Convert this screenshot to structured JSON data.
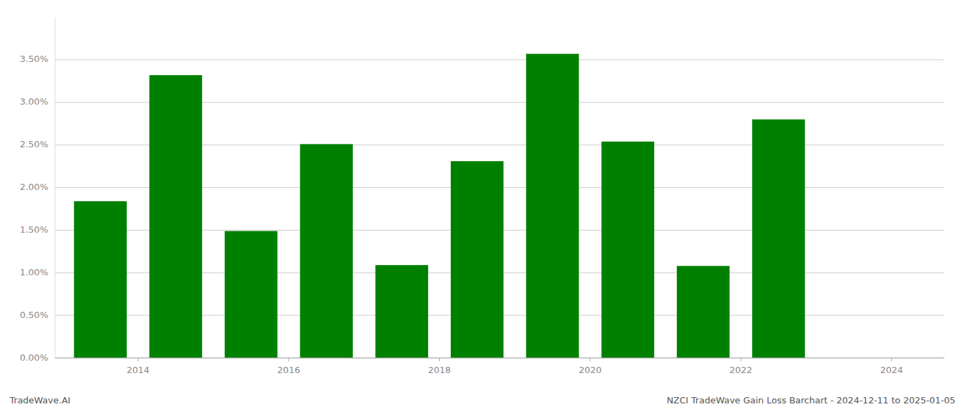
{
  "chart_data": {
    "type": "bar",
    "x": [
      2014,
      2015,
      2016,
      2017,
      2018,
      2019,
      2020,
      2021,
      2022,
      2023
    ],
    "values": [
      0.0184,
      0.0332,
      0.0149,
      0.0251,
      0.0109,
      0.0231,
      0.0357,
      0.0254,
      0.0108,
      0.028
    ],
    "color": "#008000",
    "xlim": [
      2013.4,
      2025.2
    ],
    "xticks": [
      {
        "value": 2014.5,
        "label": "2014"
      },
      {
        "value": 2016.5,
        "label": "2016"
      },
      {
        "value": 2018.5,
        "label": "2018"
      },
      {
        "value": 2020.5,
        "label": "2020"
      },
      {
        "value": 2022.5,
        "label": "2022"
      },
      {
        "value": 2024.5,
        "label": "2024"
      }
    ],
    "ylim": [
      0,
      0.04
    ],
    "yticks": [
      {
        "value": 0.0,
        "label": "0.00%"
      },
      {
        "value": 0.005,
        "label": "0.50%"
      },
      {
        "value": 0.01,
        "label": "1.00%"
      },
      {
        "value": 0.015,
        "label": "1.50%"
      },
      {
        "value": 0.02,
        "label": "2.00%"
      },
      {
        "value": 0.025,
        "label": "2.50%"
      },
      {
        "value": 0.03,
        "label": "3.00%"
      },
      {
        "value": 0.035,
        "label": "3.50%"
      }
    ],
    "grid": true,
    "annotations": [
      "TradeWave.AI",
      "NZCI TradeWave Gain Loss Barchart - 2024-12-11 to 2025-01-05"
    ]
  }
}
